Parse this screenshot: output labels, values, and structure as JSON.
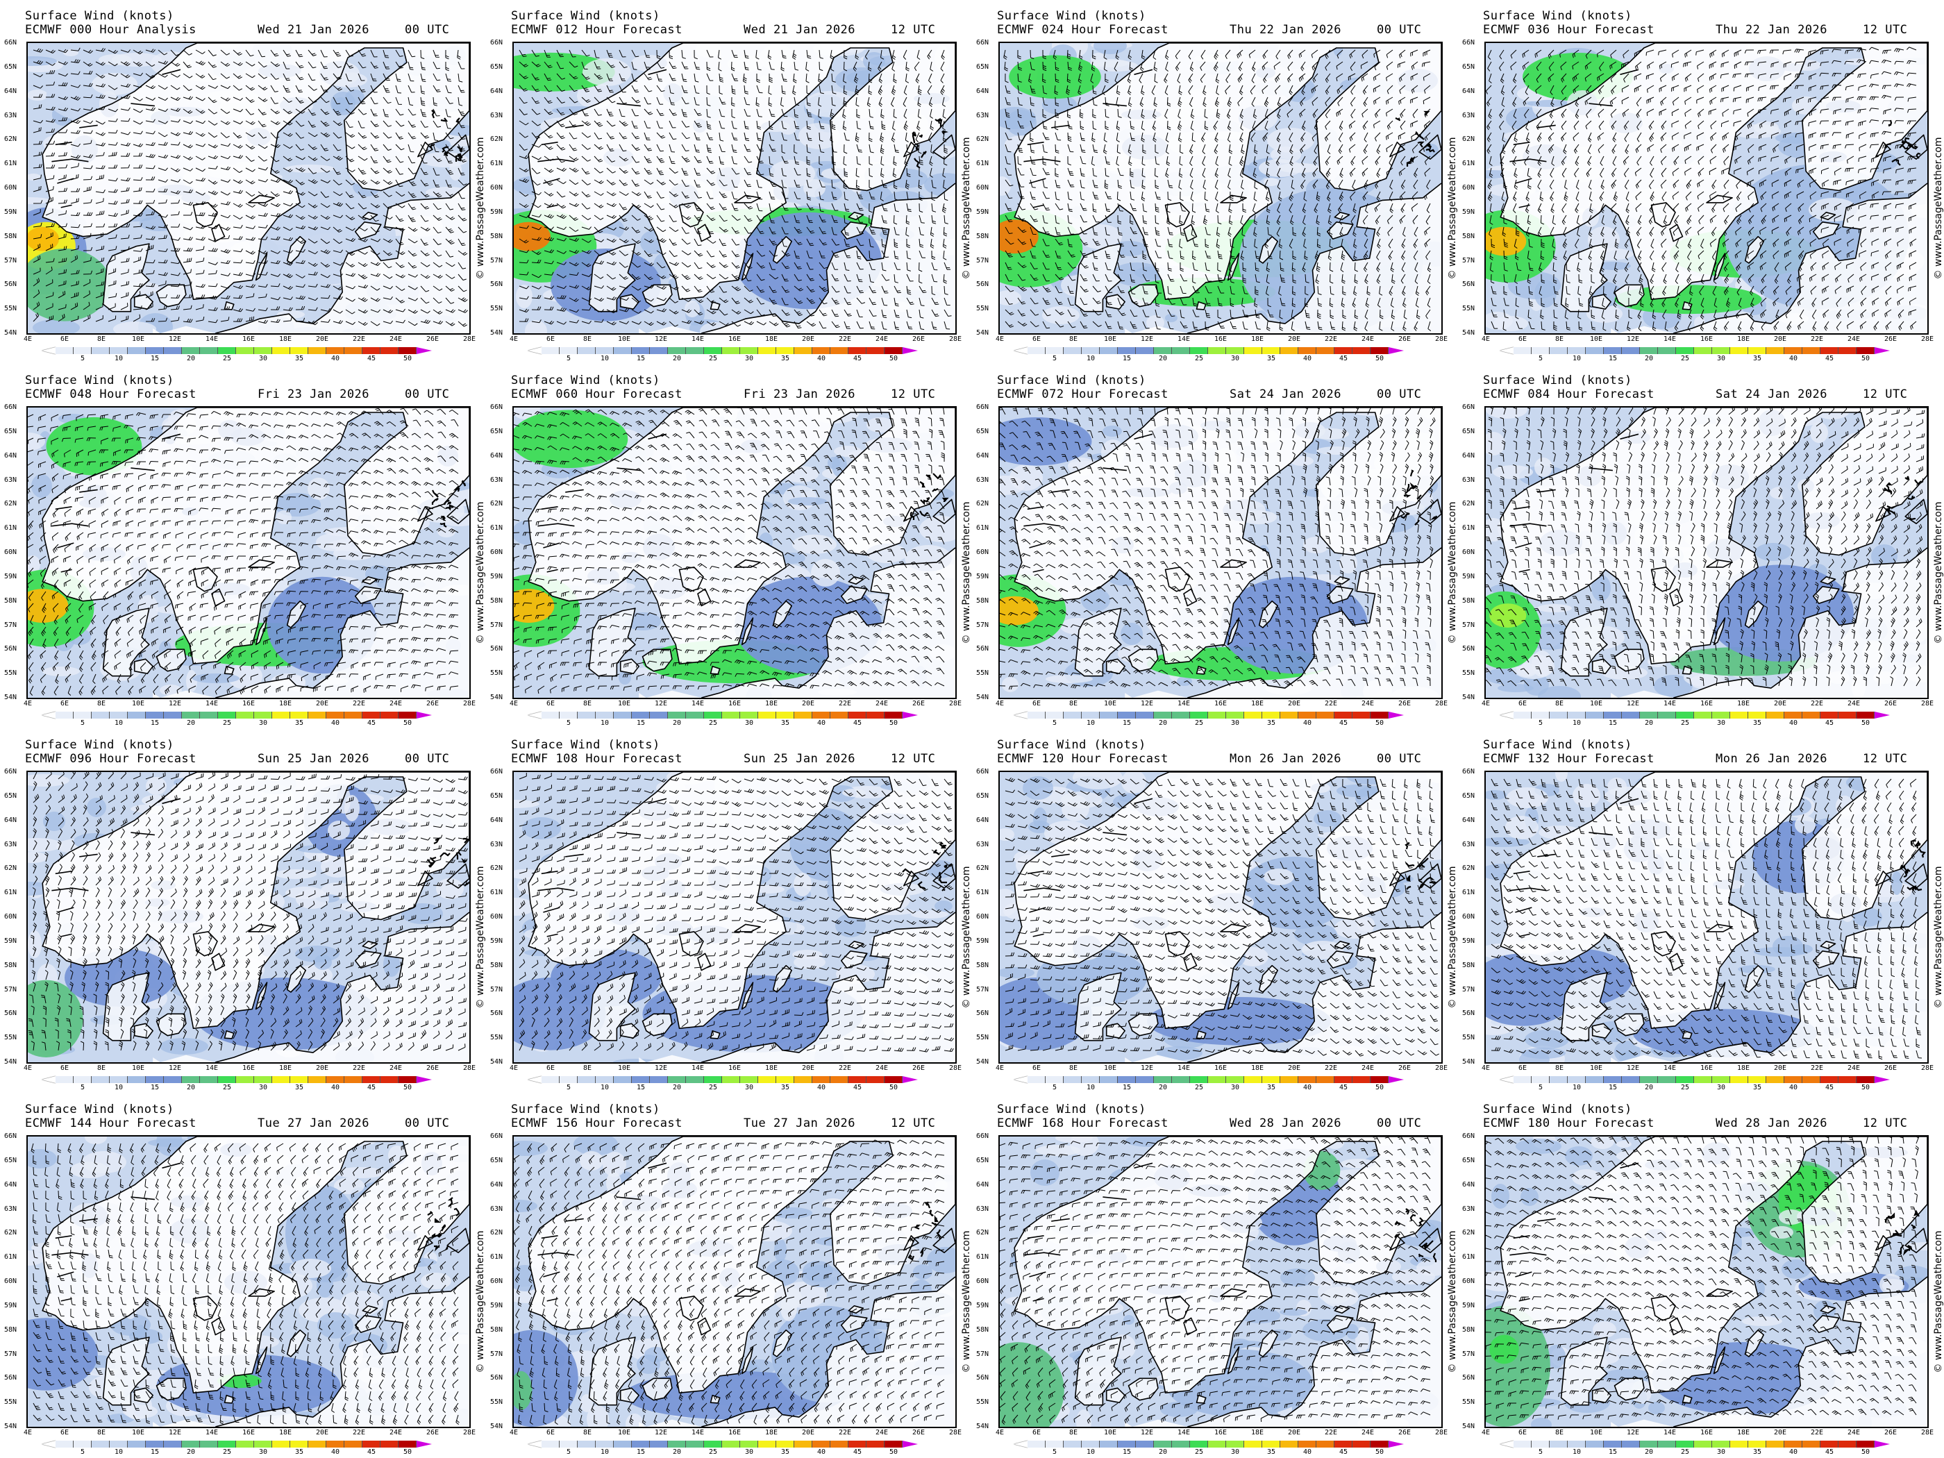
{
  "figure": {
    "variable": "Surface Wind (knots)",
    "credit": "© www.PassageWeather.com",
    "lat_labels": [
      "66N",
      "65N",
      "64N",
      "63N",
      "62N",
      "61N",
      "60N",
      "59N",
      "58N",
      "57N",
      "56N",
      "55N",
      "54N"
    ],
    "lon_labels": [
      "4E",
      "6E",
      "8E",
      "10E",
      "12E",
      "14E",
      "16E",
      "18E",
      "20E",
      "22E",
      "24E",
      "26E",
      "28E"
    ],
    "colorbar": {
      "labels": [
        "5",
        "10",
        "15",
        "20",
        "25",
        "30",
        "35",
        "40",
        "45",
        "50"
      ],
      "colors": [
        "#e8eef8",
        "#c9d8ef",
        "#a3bde4",
        "#7896d6",
        "#5fc285",
        "#3ddc54",
        "#9ef03d",
        "#f5f21a",
        "#f8b80c",
        "#ef7a0c",
        "#dd2a0c",
        "#b50000"
      ],
      "overflow_color": "#d000e0"
    }
  },
  "panels": [
    {
      "model": "ECMWF 000 Hour Analysis",
      "date": "Wed 21 Jan 2026",
      "utc": "00 UTC"
    },
    {
      "model": "ECMWF 012 Hour Forecast",
      "date": "Wed 21 Jan 2026",
      "utc": "12 UTC"
    },
    {
      "model": "ECMWF 024 Hour Forecast",
      "date": "Thu 22 Jan 2026",
      "utc": "00 UTC"
    },
    {
      "model": "ECMWF 036 Hour Forecast",
      "date": "Thu 22 Jan 2026",
      "utc": "12 UTC"
    },
    {
      "model": "ECMWF 048 Hour Forecast",
      "date": "Fri 23 Jan 2026",
      "utc": "00 UTC"
    },
    {
      "model": "ECMWF 060 Hour Forecast",
      "date": "Fri 23 Jan 2026",
      "utc": "12 UTC"
    },
    {
      "model": "ECMWF 072 Hour Forecast",
      "date": "Sat 24 Jan 2026",
      "utc": "00 UTC"
    },
    {
      "model": "ECMWF 084 Hour Forecast",
      "date": "Sat 24 Jan 2026",
      "utc": "12 UTC"
    },
    {
      "model": "ECMWF 096 Hour Forecast",
      "date": "Sun 25 Jan 2026",
      "utc": "00 UTC"
    },
    {
      "model": "ECMWF 108 Hour Forecast",
      "date": "Sun 25 Jan 2026",
      "utc": "12 UTC"
    },
    {
      "model": "ECMWF 120 Hour Forecast",
      "date": "Mon 26 Jan 2026",
      "utc": "00 UTC"
    },
    {
      "model": "ECMWF 132 Hour Forecast",
      "date": "Mon 26 Jan 2026",
      "utc": "12 UTC"
    },
    {
      "model": "ECMWF 144 Hour Forecast",
      "date": "Tue 27 Jan 2026",
      "utc": "00 UTC"
    },
    {
      "model": "ECMWF 156 Hour Forecast",
      "date": "Tue 27 Jan 2026",
      "utc": "12 UTC"
    },
    {
      "model": "ECMWF 168 Hour Forecast",
      "date": "Wed 28 Jan 2026",
      "utc": "00 UTC"
    },
    {
      "model": "ECMWF 180 Hour Forecast",
      "date": "Wed 28 Jan 2026",
      "utc": "12 UTC"
    }
  ]
}
